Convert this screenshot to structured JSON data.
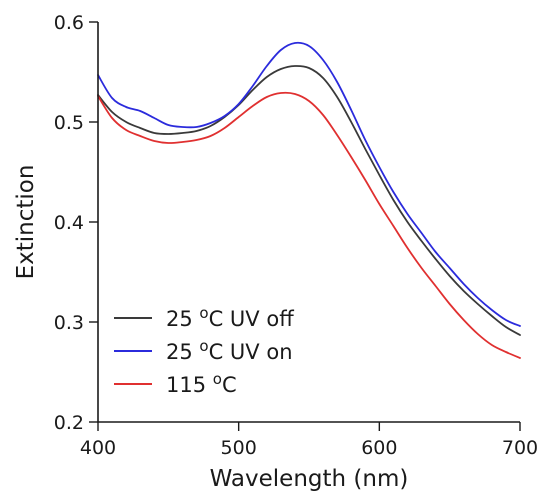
{
  "chart_data": {
    "type": "line",
    "xlabel": "Wavelength (nm)",
    "ylabel": "Extinction",
    "xlim": [
      400,
      700
    ],
    "ylim": [
      0.2,
      0.6
    ],
    "xticks": [
      400,
      500,
      600,
      700
    ],
    "yticks": [
      0.2,
      0.3,
      0.4,
      0.5,
      0.6
    ],
    "xtick_labels": [
      "400",
      "500",
      "600",
      "700"
    ],
    "ytick_labels": [
      "0.2",
      "0.3",
      "0.4",
      "0.5",
      "0.6"
    ],
    "grid": false,
    "legend_position": "bottom-left",
    "series": [
      {
        "name": "25 oC UV off",
        "label_prefix": "25 ",
        "label_sup": "o",
        "label_suffix": "C UV off",
        "color": "#3a3a3a",
        "x": [
          400,
          410,
          420,
          430,
          440,
          450,
          460,
          470,
          480,
          490,
          500,
          510,
          520,
          530,
          540,
          550,
          560,
          570,
          580,
          590,
          600,
          610,
          620,
          630,
          640,
          650,
          660,
          670,
          680,
          690,
          700
        ],
        "y": [
          0.527,
          0.51,
          0.5,
          0.494,
          0.489,
          0.488,
          0.489,
          0.491,
          0.496,
          0.505,
          0.517,
          0.532,
          0.545,
          0.553,
          0.556,
          0.554,
          0.544,
          0.525,
          0.5,
          0.473,
          0.447,
          0.422,
          0.4,
          0.381,
          0.363,
          0.346,
          0.331,
          0.318,
          0.306,
          0.295,
          0.287
        ]
      },
      {
        "name": "25 oC UV on",
        "label_prefix": "25 ",
        "label_sup": "o",
        "label_suffix": "C UV on",
        "color": "#2b2bdc",
        "x": [
          400,
          410,
          420,
          430,
          440,
          450,
          460,
          470,
          480,
          490,
          500,
          510,
          520,
          530,
          540,
          550,
          560,
          570,
          580,
          590,
          600,
          610,
          620,
          630,
          640,
          650,
          660,
          670,
          680,
          690,
          700
        ],
        "y": [
          0.547,
          0.524,
          0.515,
          0.511,
          0.504,
          0.497,
          0.495,
          0.495,
          0.499,
          0.506,
          0.518,
          0.536,
          0.556,
          0.572,
          0.579,
          0.576,
          0.562,
          0.54,
          0.512,
          0.482,
          0.455,
          0.43,
          0.408,
          0.389,
          0.37,
          0.354,
          0.338,
          0.324,
          0.312,
          0.302,
          0.296
        ]
      },
      {
        "name": "115 oC",
        "label_prefix": "115 ",
        "label_sup": "o",
        "label_suffix": "C",
        "color": "#e03030",
        "x": [
          400,
          410,
          420,
          430,
          440,
          450,
          460,
          470,
          480,
          490,
          500,
          510,
          520,
          530,
          540,
          550,
          560,
          570,
          580,
          590,
          600,
          610,
          620,
          630,
          640,
          650,
          660,
          670,
          680,
          690,
          700
        ],
        "y": [
          0.526,
          0.504,
          0.492,
          0.486,
          0.481,
          0.479,
          0.48,
          0.482,
          0.486,
          0.494,
          0.505,
          0.516,
          0.525,
          0.529,
          0.528,
          0.521,
          0.507,
          0.487,
          0.465,
          0.442,
          0.418,
          0.396,
          0.374,
          0.354,
          0.336,
          0.318,
          0.302,
          0.288,
          0.277,
          0.27,
          0.264
        ]
      }
    ]
  }
}
